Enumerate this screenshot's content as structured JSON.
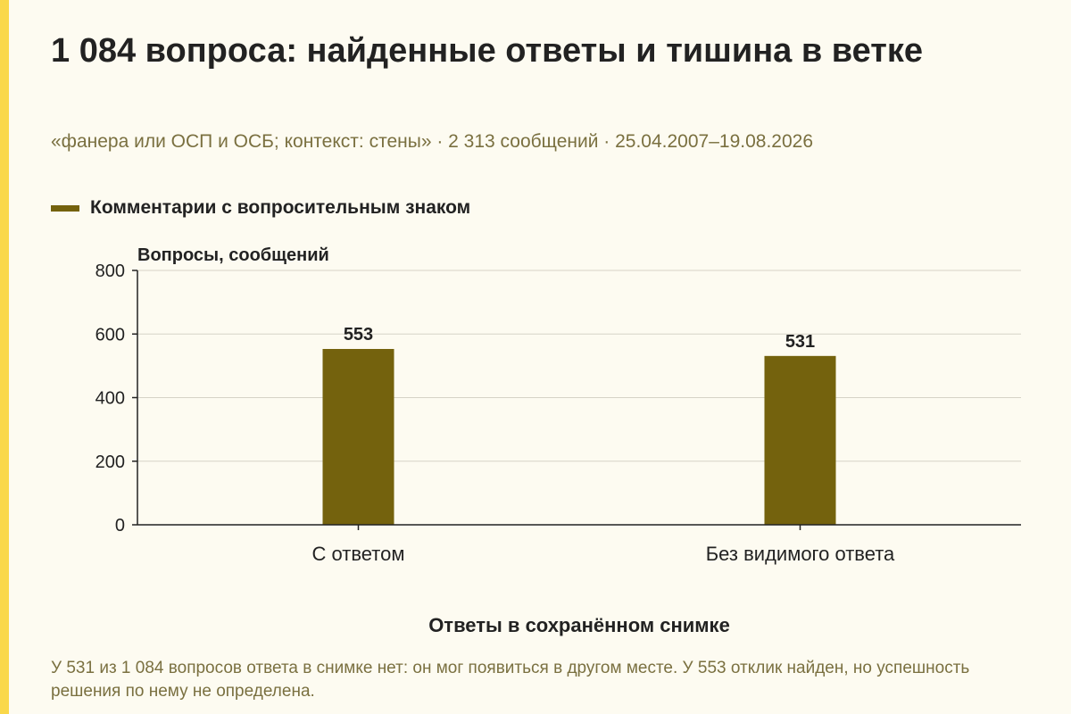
{
  "colors": {
    "accent_bar": "#fad84a",
    "bar": "#74620d",
    "background": "#fdfbf1",
    "muted_text": "#7a7040"
  },
  "header": {
    "title": "1 084 вопроса: найденные ответы и тишина в ветке",
    "subtitle": "«фанера или ОСП и ОСБ; контекст: стены» · 2 313 сообщений · 25.04.2007–19.08.2026"
  },
  "chart_data": {
    "type": "bar",
    "categories": [
      "С ответом",
      "Без видимого ответа"
    ],
    "series": [
      {
        "name": "Комментарии с вопросительным знаком",
        "values": [
          553,
          531
        ]
      }
    ],
    "data_labels": [
      "553",
      "531"
    ],
    "ylabel": "Вопросы, сообщений",
    "xlabel": "Ответы в сохранённом снимке",
    "ylim": [
      0,
      800
    ],
    "yticks": [
      0,
      200,
      400,
      600,
      800
    ],
    "grid": true,
    "legend": "top-left"
  },
  "footnote": "У 531 из 1 084 вопросов ответа в снимке нет: он мог появиться в другом месте. У 553 отклик найден, но успешность решения по нему не определена."
}
